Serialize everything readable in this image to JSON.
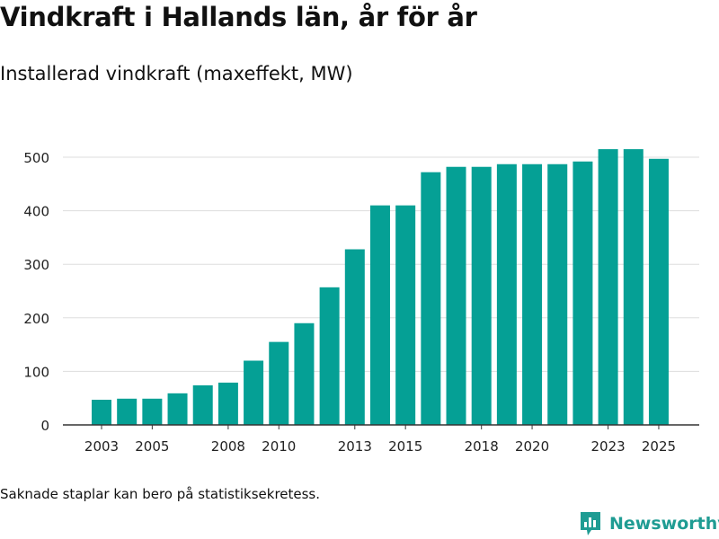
{
  "title": "Vindkraft i Hallands län, år för år",
  "subtitle": "Installerad vindkraft (maxeffekt, MW)",
  "footnote": "Saknade staplar kan bero på statistiksekretess.",
  "brand": {
    "name": "Newsworthy",
    "icon": "bar-chart-logo-icon",
    "color": "#1f9c93"
  },
  "chart_data": {
    "type": "bar",
    "x": [
      2003,
      2004,
      2005,
      2006,
      2007,
      2008,
      2009,
      2010,
      2011,
      2012,
      2013,
      2014,
      2015,
      2016,
      2017,
      2018,
      2019,
      2020,
      2021,
      2022,
      2023,
      2024,
      2025
    ],
    "values": [
      47,
      49,
      49,
      59,
      74,
      79,
      120,
      155,
      190,
      257,
      328,
      410,
      410,
      472,
      482,
      482,
      487,
      487,
      487,
      492,
      515,
      515,
      497
    ],
    "xtick_labels": [
      "2003",
      "2005",
      "2008",
      "2010",
      "2013",
      "2015",
      "2018",
      "2020",
      "2023",
      "2025"
    ],
    "yticks": [
      0,
      100,
      200,
      300,
      400,
      500
    ],
    "ylim": [
      0,
      520
    ],
    "grid": true,
    "bar_color": "#05a095"
  }
}
